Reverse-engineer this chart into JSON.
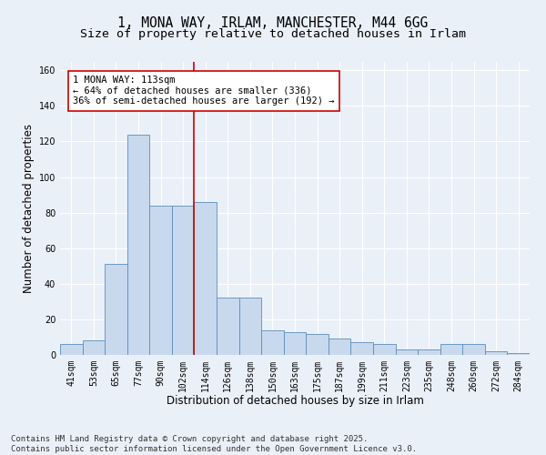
{
  "title_line1": "1, MONA WAY, IRLAM, MANCHESTER, M44 6GG",
  "title_line2": "Size of property relative to detached houses in Irlam",
  "xlabel": "Distribution of detached houses by size in Irlam",
  "ylabel": "Number of detached properties",
  "categories": [
    "41sqm",
    "53sqm",
    "65sqm",
    "77sqm",
    "90sqm",
    "102sqm",
    "114sqm",
    "126sqm",
    "138sqm",
    "150sqm",
    "163sqm",
    "175sqm",
    "187sqm",
    "199sqm",
    "211sqm",
    "223sqm",
    "235sqm",
    "248sqm",
    "260sqm",
    "272sqm",
    "284sqm"
  ],
  "values": [
    6,
    8,
    51,
    124,
    84,
    84,
    86,
    32,
    32,
    14,
    13,
    12,
    9,
    7,
    6,
    3,
    3,
    6,
    6,
    2,
    1
  ],
  "bar_color": "#c8d9ed",
  "bar_edge_color": "#5b8db8",
  "vline_color": "#cc0000",
  "vline_x_index": 6,
  "annotation_line1": "1 MONA WAY: 113sqm",
  "annotation_line2": "← 64% of detached houses are smaller (336)",
  "annotation_line3": "36% of semi-detached houses are larger (192) →",
  "annotation_box_color": "#ffffff",
  "annotation_box_edge_color": "#cc0000",
  "ylim": [
    0,
    165
  ],
  "yticks": [
    0,
    20,
    40,
    60,
    80,
    100,
    120,
    140,
    160
  ],
  "footer_line1": "Contains HM Land Registry data © Crown copyright and database right 2025.",
  "footer_line2": "Contains public sector information licensed under the Open Government Licence v3.0.",
  "bg_color": "#eaf0f8",
  "plot_bg_color": "#eaf0f8",
  "grid_color": "#ffffff",
  "title_fontsize": 10.5,
  "subtitle_fontsize": 9.5,
  "axis_label_fontsize": 8.5,
  "tick_fontsize": 7,
  "annotation_fontsize": 7.5,
  "footer_fontsize": 6.5
}
